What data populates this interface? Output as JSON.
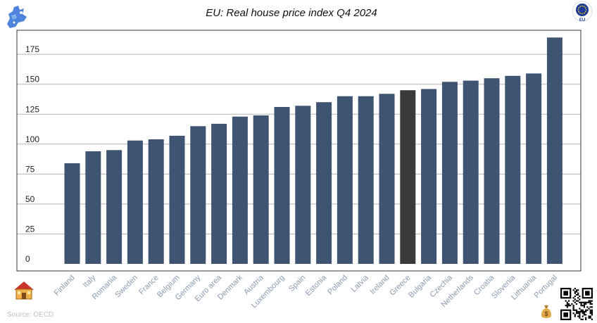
{
  "source": "Source: OECD",
  "badge_text": "EU",
  "colors": {
    "bar": "#3f5472",
    "highlight": "#3a3a3a",
    "grid": "#b5b5b5"
  },
  "icons": [
    "eu-map-icon",
    "eu-flag-icon",
    "house-icon",
    "money-bag-icon",
    "qr-code-icon"
  ],
  "chart_data": {
    "type": "bar",
    "title": "EU: Real house price index Q4 2024",
    "xlabel": "",
    "ylabel": "",
    "ylim": [
      0,
      200
    ],
    "yticks": [
      0,
      25,
      50,
      75,
      100,
      125,
      150,
      175
    ],
    "grid": true,
    "categories": [
      "Finland",
      "Italy",
      "Romania",
      "Sweden",
      "France",
      "Belgium",
      "Germany",
      "Euro area",
      "Denmark",
      "Austria",
      "Luxembourg",
      "Spain",
      "Estonia",
      "Poland",
      "Latvia",
      "Ireland",
      "Greece",
      "Bulgaria",
      "Czechia",
      "Netherlands",
      "Croatia",
      "Slovenia",
      "Lithuania",
      "Portugal"
    ],
    "values": [
      84,
      94,
      95,
      103,
      104,
      107,
      115,
      117,
      123,
      124,
      131,
      132,
      135,
      140,
      140,
      142,
      145,
      146,
      152,
      153,
      155,
      157,
      159,
      189
    ],
    "highlight": "Greece"
  }
}
